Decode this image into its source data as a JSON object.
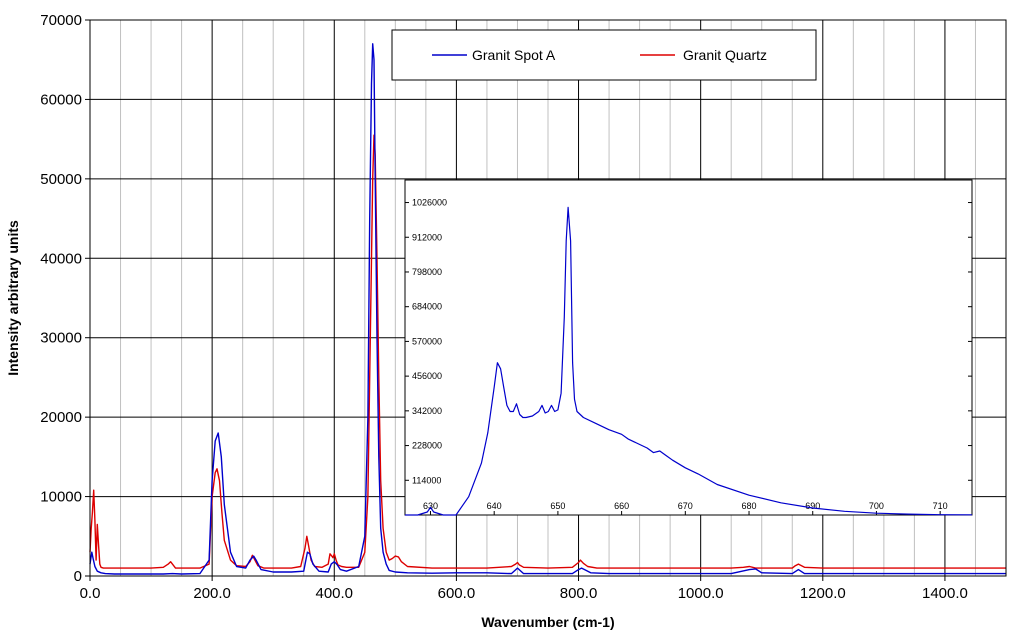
{
  "colors": {
    "series_a": "#0000cc",
    "series_b": "#dd0000",
    "grid": "#c0c0c0",
    "grid_major": "#000000"
  },
  "chart_data": [
    {
      "type": "line",
      "title": "",
      "xlabel": "Wavenumber (cm-1)",
      "ylabel": "Intensity arbitrary units",
      "xlim": [
        0,
        1500
      ],
      "ylim": [
        0,
        70000
      ],
      "grid": true,
      "legend_position": "top-right",
      "x_tick_labels": [
        "0.0",
        "200.0",
        "400.0",
        "600.0",
        "800.0",
        "1000.0",
        "1200.0",
        "1400.0"
      ],
      "y_tick_labels": [
        "0",
        "10000",
        "20000",
        "30000",
        "40000",
        "50000",
        "60000",
        "70000"
      ],
      "series": [
        {
          "name": "Granit Spot A",
          "x": [
            0,
            3,
            5,
            8,
            12,
            18,
            25,
            40,
            80,
            120,
            135,
            150,
            180,
            195,
            200,
            205,
            210,
            215,
            220,
            230,
            240,
            255,
            262,
            268,
            272,
            280,
            300,
            330,
            350,
            356,
            360,
            365,
            375,
            390,
            395,
            400,
            405,
            410,
            420,
            440,
            450,
            455,
            458,
            461,
            463,
            465,
            467,
            470,
            473,
            476,
            480,
            485,
            490,
            500,
            520,
            560,
            600,
            650,
            690,
            700,
            710,
            750,
            790,
            800,
            805,
            810,
            820,
            850,
            900,
            1000,
            1050,
            1080,
            1090,
            1100,
            1150,
            1160,
            1170,
            1200,
            1300,
            1400,
            1500
          ],
          "y": [
            1500,
            3000,
            2200,
            1200,
            600,
            400,
            300,
            250,
            250,
            250,
            300,
            250,
            300,
            2000,
            12000,
            17000,
            18000,
            15000,
            9000,
            3000,
            1200,
            1000,
            2000,
            2500,
            2000,
            800,
            500,
            500,
            600,
            3000,
            2800,
            1500,
            600,
            500,
            1500,
            1800,
            1400,
            800,
            600,
            1200,
            5000,
            20000,
            45000,
            62000,
            67000,
            65000,
            50000,
            30000,
            15000,
            6000,
            3000,
            1500,
            700,
            500,
            400,
            350,
            400,
            400,
            300,
            1000,
            300,
            300,
            300,
            800,
            1000,
            800,
            400,
            300,
            300,
            300,
            300,
            800,
            900,
            400,
            300,
            800,
            300,
            300,
            300,
            300,
            300
          ]
        },
        {
          "name": "Granit Quartz",
          "x": [
            0,
            2,
            4,
            6,
            8,
            10,
            12,
            14,
            16,
            18,
            22,
            30,
            60,
            100,
            120,
            128,
            132,
            136,
            140,
            150,
            180,
            195,
            200,
            205,
            208,
            212,
            216,
            220,
            230,
            240,
            255,
            262,
            266,
            270,
            275,
            285,
            300,
            330,
            345,
            352,
            355,
            358,
            362,
            368,
            380,
            390,
            393,
            396,
            398,
            400,
            403,
            406,
            412,
            420,
            440,
            450,
            455,
            458,
            461,
            463,
            465,
            467,
            470,
            473,
            476,
            480,
            485,
            490,
            495,
            500,
            505,
            510,
            520,
            560,
            600,
            650,
            690,
            697,
            700,
            703,
            710,
            750,
            790,
            800,
            803,
            808,
            815,
            830,
            900,
            1000,
            1050,
            1070,
            1080,
            1090,
            1100,
            1150,
            1155,
            1160,
            1170,
            1200,
            1300,
            1400,
            1500
          ],
          "y": [
            3000,
            6000,
            8000,
            10800,
            7000,
            2000,
            6500,
            4000,
            1500,
            1100,
            1000,
            1000,
            1000,
            1000,
            1100,
            1500,
            1800,
            1400,
            1000,
            1000,
            1000,
            1500,
            10000,
            13000,
            13500,
            12000,
            8000,
            4500,
            2000,
            1300,
            1200,
            1800,
            2600,
            2000,
            1300,
            1000,
            1000,
            1000,
            1200,
            3500,
            5000,
            3800,
            2000,
            1200,
            1100,
            1500,
            2800,
            2500,
            2300,
            2800,
            2000,
            1400,
            1200,
            1100,
            1100,
            3000,
            10000,
            25000,
            40000,
            50000,
            55500,
            53000,
            40000,
            25000,
            12000,
            6000,
            3000,
            2000,
            2200,
            2500,
            2400,
            1800,
            1200,
            1000,
            1000,
            1000,
            1200,
            1500,
            1700,
            1400,
            1100,
            1000,
            1100,
            1700,
            2000,
            1600,
            1200,
            1000,
            1000,
            1000,
            1000,
            1100,
            1200,
            1000,
            1000,
            1000,
            1300,
            1500,
            1100,
            1000,
            1000,
            1000,
            1000
          ]
        }
      ]
    },
    {
      "type": "line",
      "title": "",
      "xlim": [
        626,
        715
      ],
      "ylim": [
        0,
        1100000
      ],
      "grid": false,
      "x_tick_labels": [
        "630",
        "640",
        "650",
        "660",
        "670",
        "680",
        "690",
        "700",
        "710"
      ],
      "y_tick_labels": [
        "114000",
        "228000",
        "342000",
        "456000",
        "570000",
        "684000",
        "798000",
        "912000",
        "1026000"
      ],
      "series": [
        {
          "name": "",
          "x": [
            626,
            628,
            629.5,
            630,
            630.5,
            632,
            634,
            636,
            638,
            639,
            640,
            640.5,
            641,
            641.5,
            642,
            642.5,
            643,
            643.5,
            644,
            644.5,
            645,
            646,
            647,
            647.5,
            648,
            648.5,
            649,
            649.5,
            650,
            650.5,
            651,
            651.3,
            651.6,
            652,
            652.3,
            652.6,
            653,
            654,
            656,
            658,
            660,
            661,
            662,
            664,
            665,
            666,
            667,
            668,
            670,
            672,
            675,
            680,
            685,
            690,
            695,
            700,
            705,
            710,
            715
          ],
          "y": [
            0,
            0,
            10000,
            25000,
            10000,
            0,
            0,
            60000,
            170000,
            270000,
            420000,
            500000,
            480000,
            420000,
            360000,
            340000,
            340000,
            365000,
            330000,
            320000,
            320000,
            325000,
            340000,
            360000,
            335000,
            340000,
            360000,
            340000,
            345000,
            400000,
            650000,
            900000,
            1010000,
            900000,
            500000,
            380000,
            340000,
            320000,
            300000,
            280000,
            265000,
            250000,
            240000,
            220000,
            205000,
            210000,
            195000,
            180000,
            155000,
            135000,
            100000,
            65000,
            40000,
            23000,
            12000,
            6000,
            3000,
            1000,
            500
          ]
        }
      ]
    }
  ]
}
